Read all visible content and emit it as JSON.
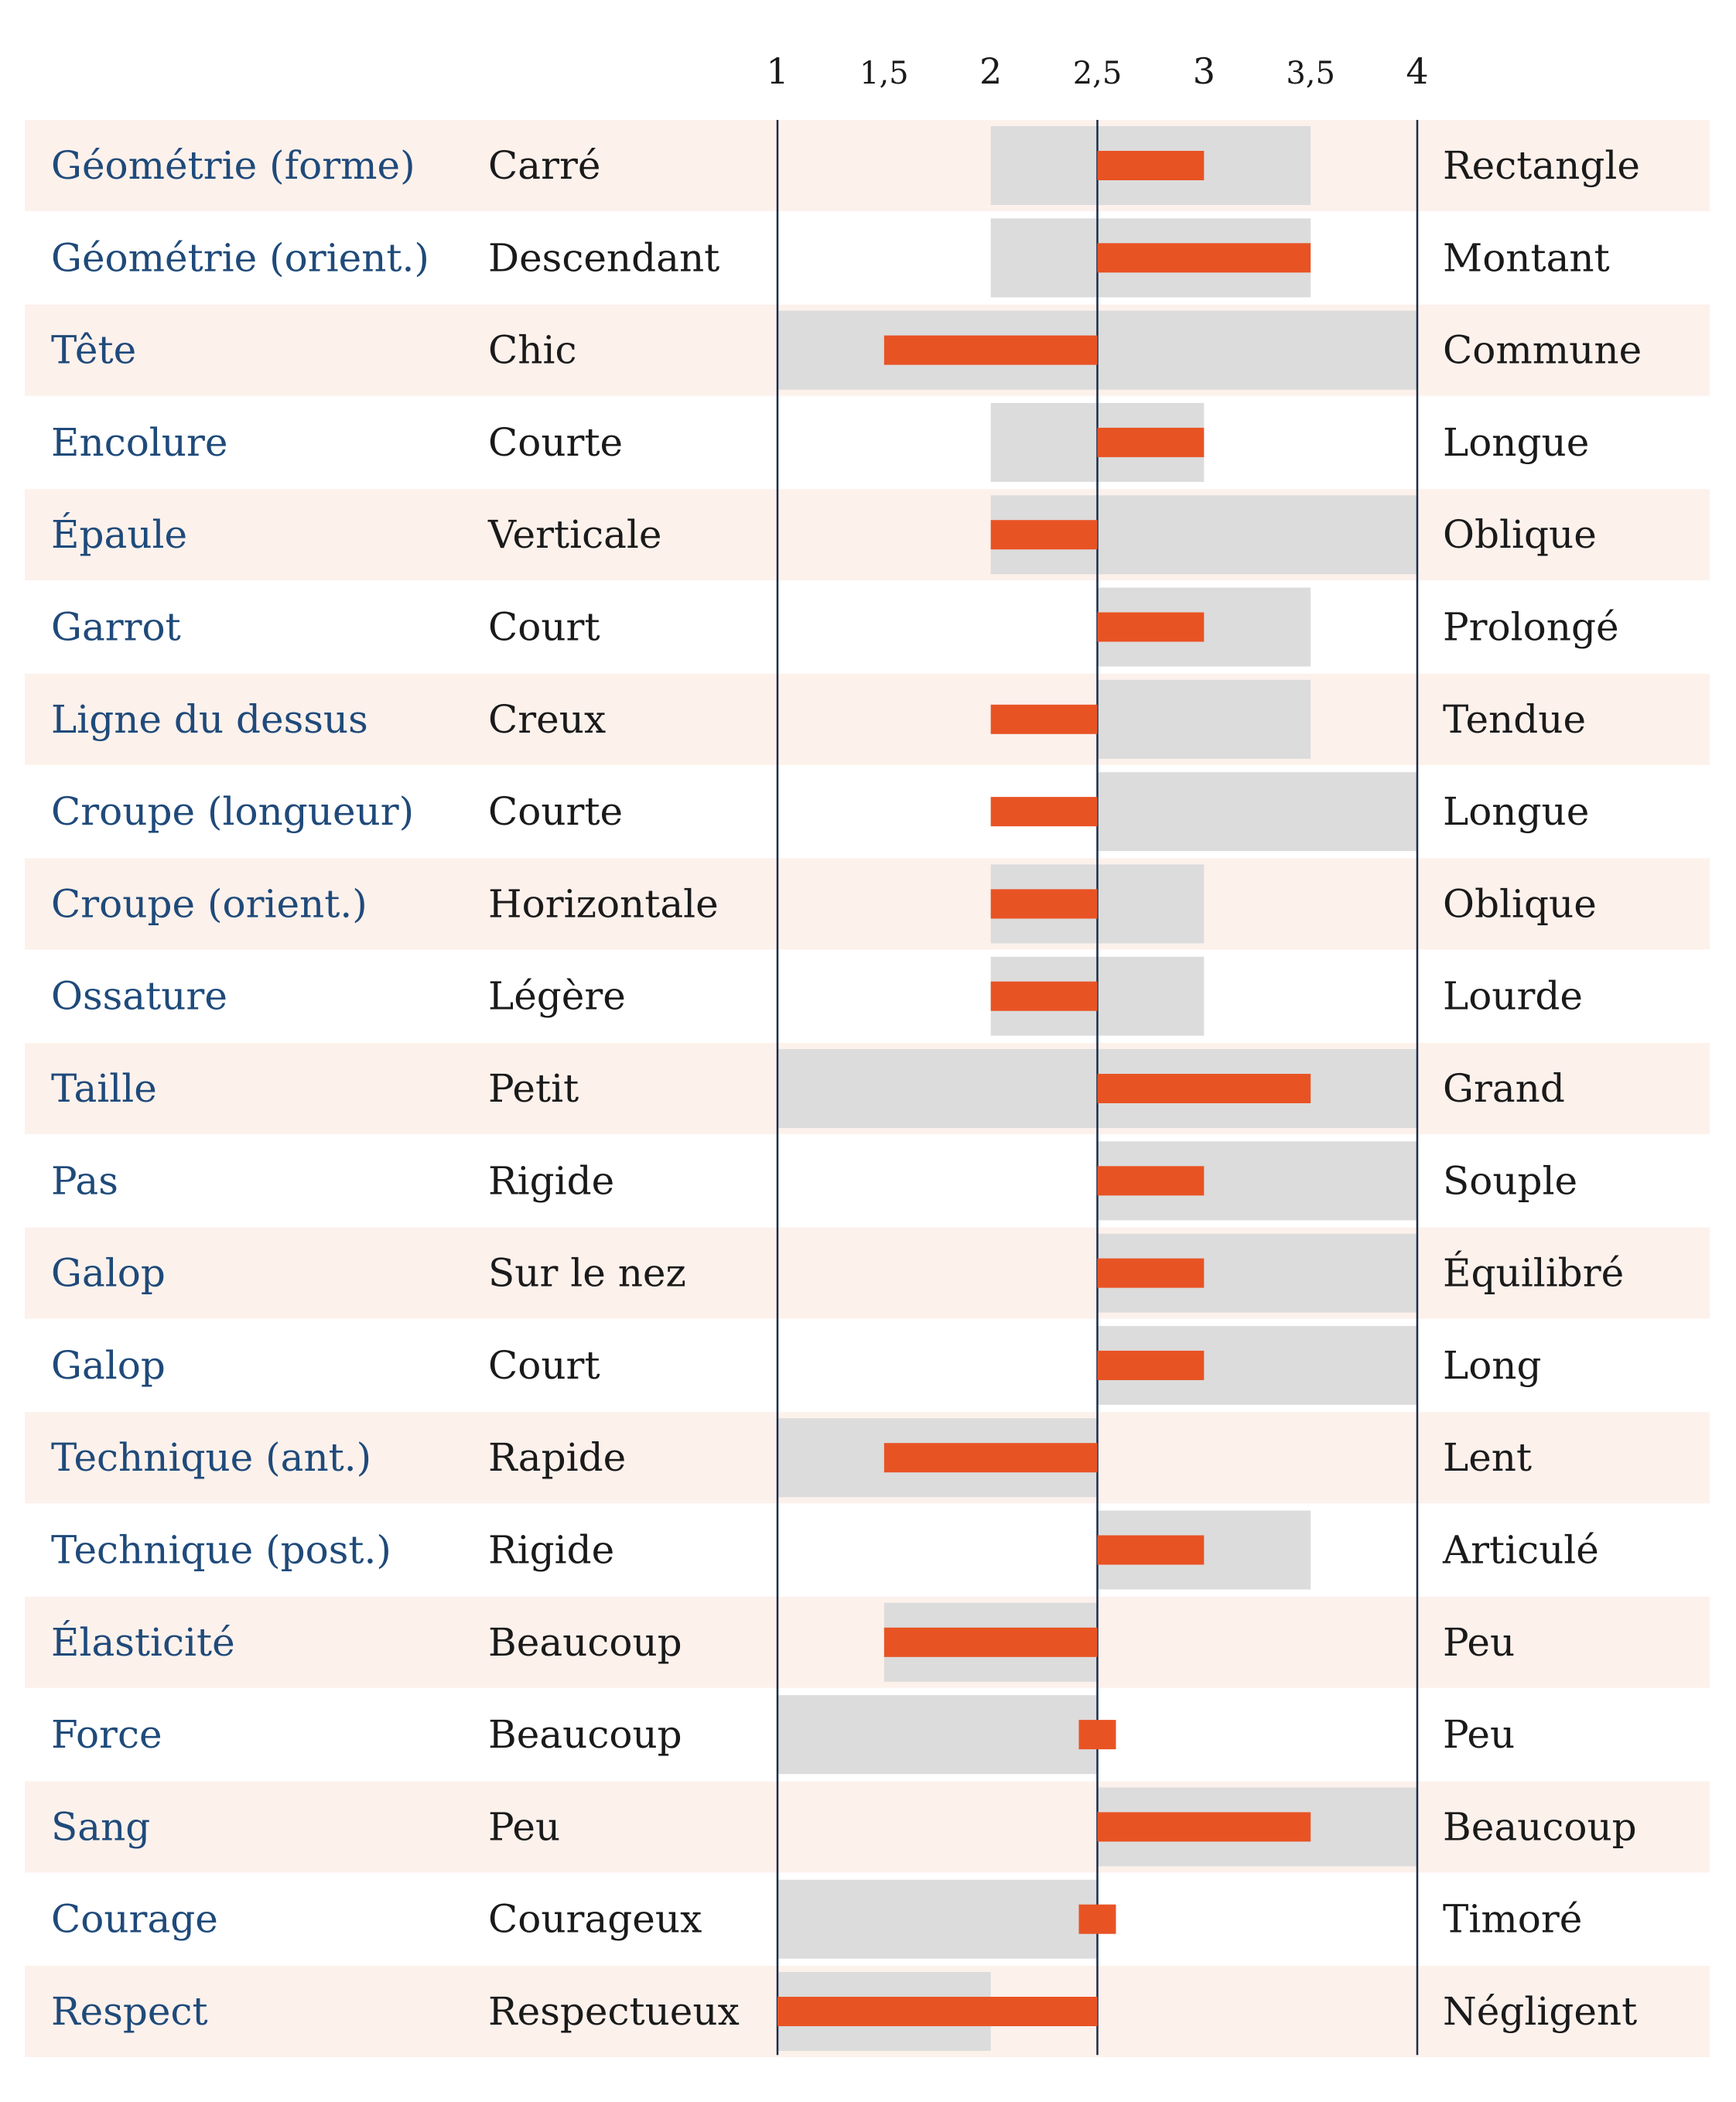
{
  "chart_data": {
    "type": "bar",
    "axis": {
      "ticks": [
        1,
        1.5,
        2,
        2.5,
        3,
        3.5,
        4
      ],
      "tick_labels": [
        "1",
        "1,5",
        "2",
        "2,5",
        "3",
        "3,5",
        "4"
      ],
      "xlim": [
        1,
        4
      ],
      "baseline": 2.5
    },
    "rows": [
      {
        "trait": "Géométrie (forme)",
        "left": "Carré",
        "right": "Rectangle",
        "range": [
          2,
          3.5
        ],
        "value": 3
      },
      {
        "trait": "Géométrie (orient.)",
        "left": "Descendant",
        "right": "Montant",
        "range": [
          2,
          3.5
        ],
        "value": 3.5
      },
      {
        "trait": "Tête",
        "left": "Chic",
        "right": "Commune",
        "range": [
          1,
          4
        ],
        "value": 1.5
      },
      {
        "trait": "Encolure",
        "left": "Courte",
        "right": "Longue",
        "range": [
          2,
          3
        ],
        "value": 3
      },
      {
        "trait": "Épaule",
        "left": "Verticale",
        "right": "Oblique",
        "range": [
          2,
          4
        ],
        "value": 2
      },
      {
        "trait": "Garrot",
        "left": "Court",
        "right": "Prolongé",
        "range": [
          2.5,
          3.5
        ],
        "value": 3
      },
      {
        "trait": "Ligne du dessus",
        "left": "Creux",
        "right": "Tendue",
        "range": [
          2.5,
          3.5
        ],
        "value": 2
      },
      {
        "trait": "Croupe (longueur)",
        "left": "Courte",
        "right": "Longue",
        "range": [
          2.5,
          4
        ],
        "value": 2
      },
      {
        "trait": "Croupe (orient.)",
        "left": "Horizontale",
        "right": "Oblique",
        "range": [
          2,
          3
        ],
        "value": 2
      },
      {
        "trait": "Ossature",
        "left": "Légère",
        "right": "Lourde",
        "range": [
          2,
          3
        ],
        "value": 2
      },
      {
        "trait": "Taille",
        "left": "Petit",
        "right": "Grand",
        "range": [
          1,
          4
        ],
        "value": 3.5
      },
      {
        "trait": "Pas",
        "left": "Rigide",
        "right": "Souple",
        "range": [
          2.5,
          4
        ],
        "value": 3
      },
      {
        "trait": "Galop",
        "left": "Sur le nez",
        "right": "Équilibré",
        "range": [
          2.5,
          4
        ],
        "value": 3
      },
      {
        "trait": "Galop",
        "left": "Court",
        "right": "Long",
        "range": [
          2.5,
          4
        ],
        "value": 3
      },
      {
        "trait": "Technique (ant.)",
        "left": "Rapide",
        "right": "Lent",
        "range": [
          1,
          2.5
        ],
        "value": 1.5
      },
      {
        "trait": "Technique (post.)",
        "left": "Rigide",
        "right": "Articulé",
        "range": [
          2.5,
          3.5
        ],
        "value": 3
      },
      {
        "trait": "Élasticité",
        "left": "Beaucoup",
        "right": "Peu",
        "range": [
          1.5,
          2.5
        ],
        "value": 1.5
      },
      {
        "trait": "Force",
        "left": "Beaucoup",
        "right": "Peu",
        "range": [
          1,
          2.5
        ],
        "value": 2.5
      },
      {
        "trait": "Sang",
        "left": "Peu",
        "right": "Beaucoup",
        "range": [
          2.5,
          4
        ],
        "value": 3.5
      },
      {
        "trait": "Courage",
        "left": "Courageux",
        "right": "Timoré",
        "range": [
          1,
          2.5
        ],
        "value": 2.5
      },
      {
        "trait": "Respect",
        "left": "Respectueux",
        "right": "Négligent",
        "range": [
          1,
          2
        ],
        "value": 1
      }
    ],
    "colors": {
      "row_stripe": "#fdf1ec",
      "range_band": "#dcdcdc",
      "value_bar": "#e85324",
      "trait_text": "#1f4a7a",
      "axis_line": "#1b2c4a"
    }
  }
}
